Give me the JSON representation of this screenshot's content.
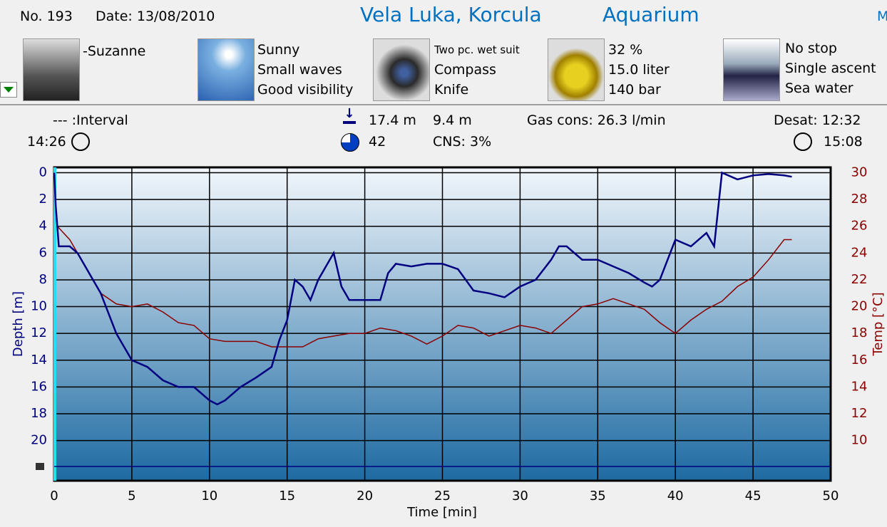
{
  "header": {
    "number": "No. 193",
    "date": "Date: 13/08/2010",
    "site": "Vela Luka, Korcula",
    "spot": "Aquarium",
    "cut": "M"
  },
  "panels": {
    "buddy": [
      "-Suzanne"
    ],
    "weather": [
      "Sunny",
      "Small waves",
      "Good visibility"
    ],
    "equipment": [
      "Two pc. wet suit",
      "Compass",
      "Knife"
    ],
    "tank": [
      "32 %",
      "15.0 liter",
      "140 bar"
    ],
    "dive": [
      "No stop",
      "Single ascent",
      "Sea water"
    ]
  },
  "stats": {
    "interval": "--- :Interval",
    "entry_time": "14:26",
    "max_depth": "17.4 m",
    "avg_depth": "9.4 m",
    "duration": "42",
    "cns": "CNS:  3%",
    "gas": "Gas cons: 26.3 l/min",
    "desat": "Desat: 12:32",
    "exit_time": "15:08"
  },
  "chart_data": {
    "type": "line",
    "xlabel": "Time [min]",
    "ylabel": "Depth [m]",
    "y2label": "Temp [°C]",
    "xlim": [
      0,
      50
    ],
    "xticks": [
      0,
      5,
      10,
      15,
      20,
      25,
      30,
      35,
      40,
      45,
      50
    ],
    "ylim": [
      23,
      -0.4
    ],
    "yticks": [
      0,
      2,
      4,
      6,
      8,
      10,
      12,
      14,
      16,
      18,
      20
    ],
    "y2lim": [
      7,
      30.4
    ],
    "y2ticks": [
      10,
      12,
      14,
      16,
      18,
      20,
      22,
      24,
      26,
      28,
      30
    ],
    "grid": true,
    "series": [
      {
        "color": "#000080",
        "x": [
          0,
          0.1,
          0.3,
          1,
          1.5,
          2,
          3,
          4,
          5,
          6,
          7,
          8,
          9,
          10,
          10.5,
          11,
          12,
          13,
          14,
          14.5,
          15,
          15.5,
          16,
          16.5,
          17,
          18,
          18.5,
          19,
          20,
          21,
          21.5,
          22,
          23,
          24,
          25,
          26,
          27,
          28,
          29,
          30,
          31,
          32,
          32.5,
          33,
          34,
          35,
          36,
          37,
          38,
          38.5,
          39,
          40,
          41,
          42,
          42.5,
          43,
          44,
          45,
          46,
          47,
          47.5
        ],
        "values": [
          0,
          2.5,
          5.5,
          5.5,
          6,
          7,
          9,
          12,
          14,
          14.5,
          15.5,
          16,
          16,
          17,
          17.3,
          17,
          16,
          15.3,
          14.5,
          12.5,
          11,
          8,
          8.5,
          9.5,
          8,
          6,
          8.5,
          9.5,
          9.5,
          9.5,
          7.5,
          6.8,
          7,
          6.8,
          6.8,
          7.2,
          8.8,
          9,
          9.3,
          8.5,
          8,
          6.5,
          5.5,
          5.5,
          6.5,
          6.5,
          7,
          7.5,
          8.2,
          8.5,
          8,
          5,
          5.5,
          4.5,
          5.5,
          0,
          0.5,
          0.2,
          0.1,
          0.2,
          0.3
        ]
      },
      {
        "color": "#8b0000",
        "axis": "y2",
        "x": [
          0.2,
          1,
          2,
          3,
          4,
          5,
          6,
          7,
          8,
          9,
          10,
          11,
          12,
          13,
          14,
          15,
          16,
          17,
          18,
          19,
          20,
          21,
          22,
          23,
          24,
          25,
          26,
          27,
          28,
          29,
          30,
          31,
          32,
          33,
          34,
          35,
          36,
          37,
          38,
          39,
          40,
          41,
          42,
          43,
          44,
          45,
          46,
          47,
          47.5
        ],
        "values": [
          26,
          25,
          23,
          21,
          20.2,
          20,
          20.2,
          19.6,
          18.8,
          18.6,
          17.6,
          17.4,
          17.4,
          17.4,
          17,
          17,
          17,
          17.6,
          17.8,
          18,
          18,
          18.4,
          18.2,
          17.8,
          17.2,
          17.8,
          18.6,
          18.4,
          17.8,
          18.2,
          18.6,
          18.4,
          18,
          19,
          20,
          20.2,
          20.6,
          20.2,
          19.8,
          18.8,
          18,
          19,
          19.8,
          20.4,
          21.5,
          22.2,
          23.5,
          25,
          25
        ]
      }
    ]
  }
}
